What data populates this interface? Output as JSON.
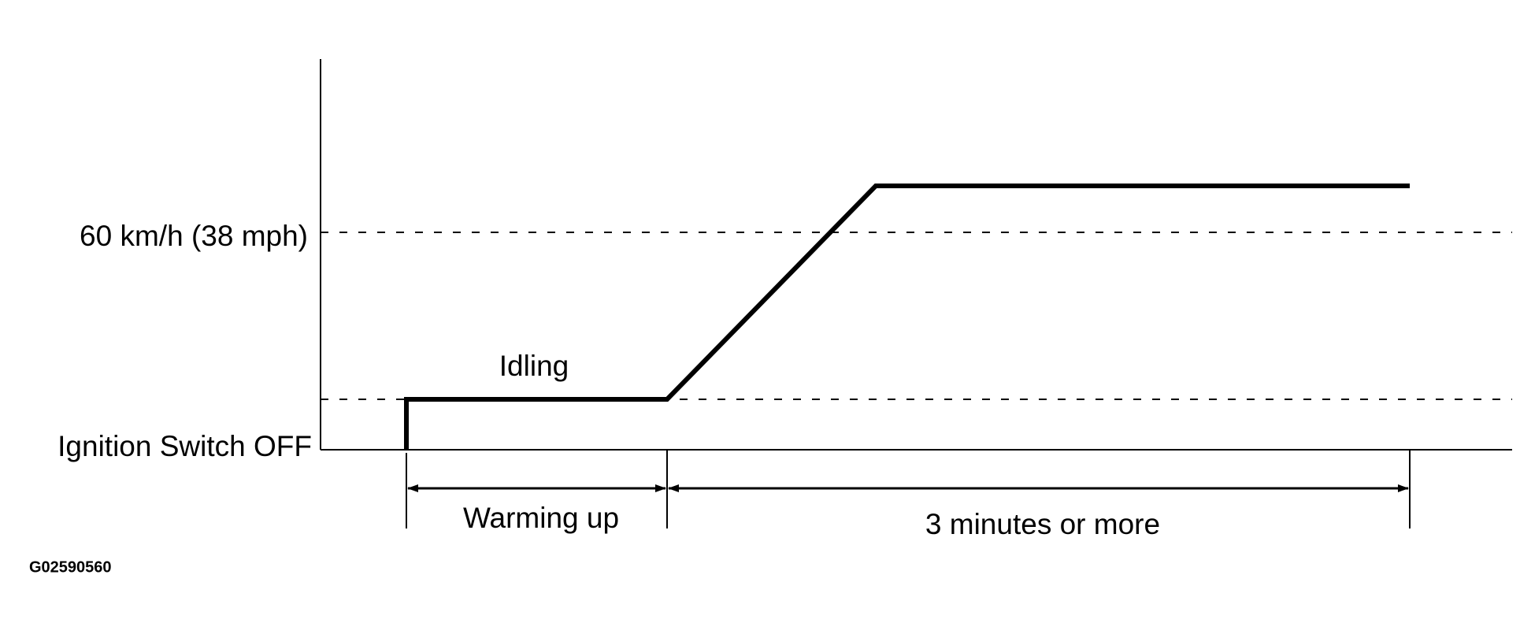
{
  "axis_labels": {
    "speed": "60 km/h (38 mph)",
    "ignition": "Ignition Switch OFF"
  },
  "phases": {
    "idling": "Idling",
    "warming_up": "Warming up",
    "duration": "3 minutes or more"
  },
  "figure_code": "G02590560"
}
